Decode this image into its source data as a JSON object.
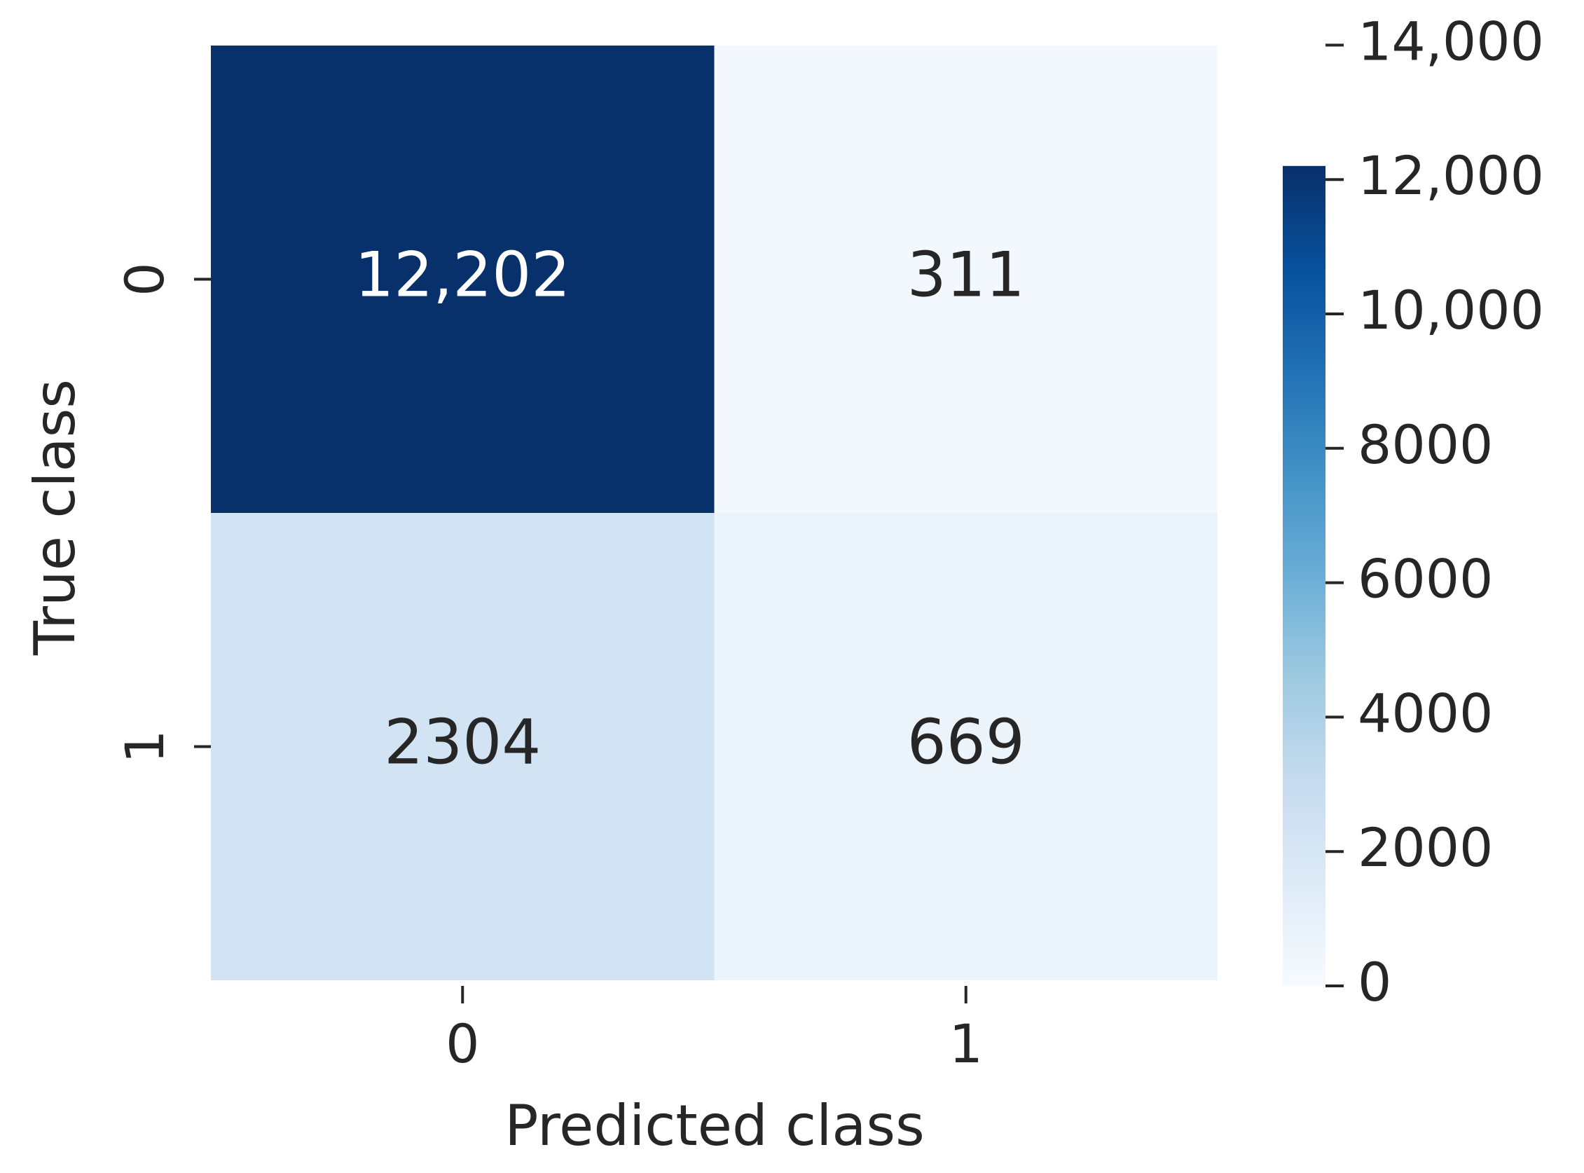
{
  "chart_data": {
    "type": "heatmap",
    "x_label": "Predicted class",
    "y_label": "True class",
    "x_categories": [
      "0",
      "1"
    ],
    "y_categories": [
      "0",
      "1"
    ],
    "values": [
      [
        12202,
        311
      ],
      [
        2304,
        669
      ]
    ],
    "value_labels": [
      [
        "12,202",
        "311"
      ],
      [
        "2304",
        "669"
      ]
    ],
    "colormap": "Blues",
    "clim": [
      0,
      12202
    ],
    "cticks": [
      0,
      2000,
      4000,
      6000,
      8000,
      {
        "value": 10000,
        "label": "10,000"
      },
      {
        "value": 12000,
        "label": "12,000"
      },
      {
        "value": 14000,
        "label": "14,000"
      }
    ]
  }
}
